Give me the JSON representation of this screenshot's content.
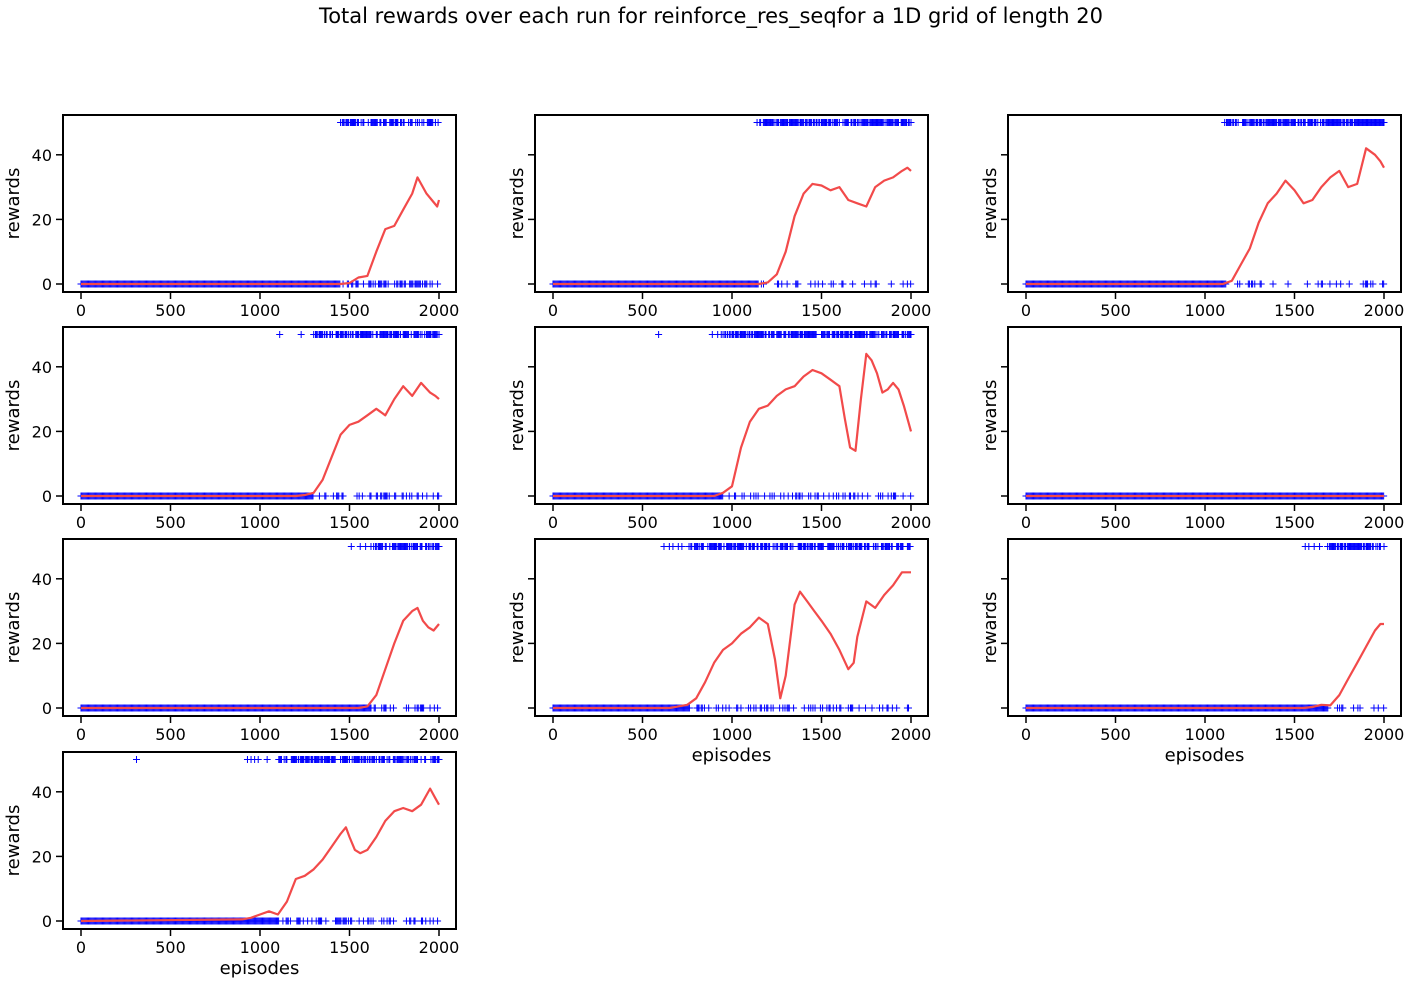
{
  "figure": {
    "title": "Total rewards over each run for reinforce_res_seqfor a 1D grid of length 20",
    "line_color": "#f24a4a",
    "marker_color": "#0000ff"
  },
  "chart_data": [
    {
      "type": "line",
      "ylabel": "rewards",
      "xlabel": "",
      "xlim": [
        0,
        2000
      ],
      "ylim": [
        0,
        50
      ],
      "xticks": [
        "0",
        "500",
        "1000",
        "1500",
        "2000"
      ],
      "yticks": [
        "0",
        "20",
        "40"
      ],
      "show_yticklabels": true,
      "line_points": [
        [
          0,
          0
        ],
        [
          1450,
          0
        ],
        [
          1500,
          0.3
        ],
        [
          1550,
          2
        ],
        [
          1600,
          2.5
        ],
        [
          1650,
          10
        ],
        [
          1700,
          17
        ],
        [
          1750,
          18
        ],
        [
          1800,
          23
        ],
        [
          1850,
          28
        ],
        [
          1880,
          33
        ],
        [
          1900,
          31
        ],
        [
          1930,
          28
        ],
        [
          1960,
          26
        ],
        [
          1990,
          24
        ],
        [
          2000,
          26
        ]
      ],
      "success_start": 1450,
      "success_density": 0.55,
      "success_isolated": [
        1480,
        1510,
        1520,
        1530
      ],
      "failure_end": 2000
    },
    {
      "type": "line",
      "ylabel": "rewards",
      "xlabel": "",
      "xlim": [
        0,
        2000
      ],
      "ylim": [
        0,
        50
      ],
      "xticks": [
        "0",
        "500",
        "1000",
        "1500",
        "2000"
      ],
      "yticks": [
        "0",
        "20",
        "40"
      ],
      "show_yticklabels": false,
      "line_points": [
        [
          0,
          0
        ],
        [
          1150,
          0
        ],
        [
          1200,
          0.5
        ],
        [
          1250,
          3
        ],
        [
          1300,
          10
        ],
        [
          1350,
          21
        ],
        [
          1400,
          28
        ],
        [
          1450,
          31
        ],
        [
          1500,
          30.5
        ],
        [
          1550,
          29
        ],
        [
          1600,
          30
        ],
        [
          1650,
          26
        ],
        [
          1700,
          25
        ],
        [
          1750,
          24
        ],
        [
          1800,
          30
        ],
        [
          1850,
          32
        ],
        [
          1900,
          33
        ],
        [
          1950,
          35
        ],
        [
          1980,
          36
        ],
        [
          2000,
          35
        ]
      ],
      "success_start": 1150,
      "success_density": 0.75,
      "success_isolated": [
        1140,
        1180,
        1200,
        1230
      ],
      "failure_end": 2000
    },
    {
      "type": "line",
      "ylabel": "rewards",
      "xlabel": "",
      "xlim": [
        0,
        2000
      ],
      "ylim": [
        0,
        50
      ],
      "xticks": [
        "0",
        "500",
        "1000",
        "1500",
        "2000"
      ],
      "yticks": [
        "0",
        "20",
        "40"
      ],
      "show_yticklabels": false,
      "line_points": [
        [
          0,
          0
        ],
        [
          1100,
          0
        ],
        [
          1150,
          1
        ],
        [
          1200,
          6
        ],
        [
          1250,
          11
        ],
        [
          1300,
          19
        ],
        [
          1350,
          25
        ],
        [
          1400,
          28
        ],
        [
          1450,
          32
        ],
        [
          1500,
          29
        ],
        [
          1550,
          25
        ],
        [
          1600,
          26
        ],
        [
          1650,
          30
        ],
        [
          1700,
          33
        ],
        [
          1750,
          35
        ],
        [
          1800,
          30
        ],
        [
          1850,
          31
        ],
        [
          1900,
          42
        ],
        [
          1950,
          40
        ],
        [
          1980,
          38
        ],
        [
          2000,
          36
        ]
      ],
      "success_start": 1120,
      "success_density": 0.8,
      "success_isolated": [
        1110
      ],
      "failure_end": 2000
    },
    {
      "type": "line",
      "ylabel": "rewards",
      "xlabel": "",
      "xlim": [
        0,
        2000
      ],
      "ylim": [
        0,
        50
      ],
      "xticks": [
        "0",
        "500",
        "1000",
        "1500",
        "2000"
      ],
      "yticks": [
        "0",
        "20",
        "40"
      ],
      "show_yticklabels": true,
      "line_points": [
        [
          0,
          0
        ],
        [
          1200,
          0
        ],
        [
          1250,
          0.3
        ],
        [
          1300,
          1
        ],
        [
          1350,
          5
        ],
        [
          1400,
          12
        ],
        [
          1450,
          19
        ],
        [
          1500,
          22
        ],
        [
          1550,
          23
        ],
        [
          1600,
          25
        ],
        [
          1650,
          27
        ],
        [
          1700,
          25
        ],
        [
          1750,
          30
        ],
        [
          1800,
          34
        ],
        [
          1850,
          31
        ],
        [
          1900,
          35
        ],
        [
          1950,
          32
        ],
        [
          1980,
          31
        ],
        [
          2000,
          30
        ]
      ],
      "success_start": 1300,
      "success_density": 0.7,
      "success_isolated": [
        1110,
        1230
      ],
      "failure_end": 2000
    },
    {
      "type": "line",
      "ylabel": "rewards",
      "xlabel": "",
      "xlim": [
        0,
        2000
      ],
      "ylim": [
        0,
        50
      ],
      "xticks": [
        "0",
        "500",
        "1000",
        "1500",
        "2000"
      ],
      "yticks": [
        "0",
        "20",
        "40"
      ],
      "show_yticklabels": false,
      "line_points": [
        [
          0,
          0
        ],
        [
          900,
          0
        ],
        [
          950,
          1
        ],
        [
          1000,
          3
        ],
        [
          1050,
          15
        ],
        [
          1100,
          23
        ],
        [
          1150,
          27
        ],
        [
          1200,
          28
        ],
        [
          1250,
          31
        ],
        [
          1300,
          33
        ],
        [
          1350,
          34
        ],
        [
          1400,
          37
        ],
        [
          1450,
          39
        ],
        [
          1500,
          38
        ],
        [
          1550,
          36
        ],
        [
          1600,
          34
        ],
        [
          1630,
          24
        ],
        [
          1660,
          15
        ],
        [
          1690,
          14
        ],
        [
          1720,
          30
        ],
        [
          1750,
          44
        ],
        [
          1780,
          42
        ],
        [
          1810,
          38
        ],
        [
          1840,
          32
        ],
        [
          1870,
          33
        ],
        [
          1900,
          35
        ],
        [
          1930,
          33
        ],
        [
          1960,
          28
        ],
        [
          1990,
          22
        ],
        [
          2000,
          20
        ]
      ],
      "success_start": 950,
      "success_density": 0.7,
      "success_isolated": [
        590,
        890,
        920,
        940
      ],
      "failure_end": 2000
    },
    {
      "type": "line",
      "ylabel": "rewards",
      "xlabel": "",
      "xlim": [
        0,
        2000
      ],
      "ylim": [
        0,
        50
      ],
      "xticks": [
        "0",
        "500",
        "1000",
        "1500",
        "2000"
      ],
      "yticks": [
        "0",
        "20",
        "40"
      ],
      "show_yticklabels": false,
      "line_points": [
        [
          0,
          0
        ],
        [
          2000,
          0
        ]
      ],
      "success_start": null,
      "success_density": 0,
      "success_isolated": [],
      "failure_end": 2000
    },
    {
      "type": "line",
      "ylabel": "rewards",
      "xlabel": "",
      "xlim": [
        0,
        2000
      ],
      "ylim": [
        0,
        50
      ],
      "xticks": [
        "0",
        "500",
        "1000",
        "1500",
        "2000"
      ],
      "yticks": [
        "0",
        "20",
        "40"
      ],
      "show_yticklabels": true,
      "line_points": [
        [
          0,
          0
        ],
        [
          1550,
          0
        ],
        [
          1600,
          0.5
        ],
        [
          1650,
          4
        ],
        [
          1700,
          12
        ],
        [
          1750,
          20
        ],
        [
          1800,
          27
        ],
        [
          1850,
          30
        ],
        [
          1880,
          31
        ],
        [
          1910,
          27
        ],
        [
          1940,
          25
        ],
        [
          1970,
          24
        ],
        [
          2000,
          26
        ]
      ],
      "success_start": 1620,
      "success_density": 0.7,
      "success_isolated": [
        1510,
        1560,
        1590
      ],
      "failure_end": 2000
    },
    {
      "type": "line",
      "ylabel": "rewards",
      "xlabel": "episodes",
      "xlim": [
        0,
        2000
      ],
      "ylim": [
        0,
        50
      ],
      "xticks": [
        "0",
        "500",
        "1000",
        "1500",
        "2000"
      ],
      "yticks": [
        "0",
        "20",
        "40"
      ],
      "show_yticklabels": false,
      "line_points": [
        [
          0,
          0
        ],
        [
          650,
          0
        ],
        [
          700,
          0.5
        ],
        [
          750,
          1
        ],
        [
          800,
          3
        ],
        [
          850,
          8
        ],
        [
          900,
          14
        ],
        [
          950,
          18
        ],
        [
          1000,
          20
        ],
        [
          1050,
          23
        ],
        [
          1100,
          25
        ],
        [
          1150,
          28
        ],
        [
          1200,
          26
        ],
        [
          1240,
          15
        ],
        [
          1270,
          3
        ],
        [
          1300,
          10
        ],
        [
          1350,
          32
        ],
        [
          1380,
          36
        ],
        [
          1420,
          33
        ],
        [
          1460,
          30
        ],
        [
          1500,
          27
        ],
        [
          1550,
          23
        ],
        [
          1600,
          18
        ],
        [
          1650,
          12
        ],
        [
          1680,
          14
        ],
        [
          1700,
          22
        ],
        [
          1750,
          33
        ],
        [
          1800,
          31
        ],
        [
          1850,
          35
        ],
        [
          1900,
          38
        ],
        [
          1950,
          42
        ],
        [
          2000,
          42
        ]
      ],
      "success_start": 760,
      "success_density": 0.65,
      "success_isolated": [
        620,
        650,
        670,
        700,
        720
      ],
      "failure_end": 2000
    },
    {
      "type": "line",
      "ylabel": "rewards",
      "xlabel": "episodes",
      "xlim": [
        0,
        2000
      ],
      "ylim": [
        0,
        50
      ],
      "xticks": [
        "0",
        "500",
        "1000",
        "1500",
        "2000"
      ],
      "yticks": [
        "0",
        "20",
        "40"
      ],
      "show_yticklabels": false,
      "line_points": [
        [
          0,
          0
        ],
        [
          1550,
          0
        ],
        [
          1600,
          0.3
        ],
        [
          1650,
          1
        ],
        [
          1700,
          0.8
        ],
        [
          1750,
          4
        ],
        [
          1800,
          9
        ],
        [
          1850,
          14
        ],
        [
          1900,
          19
        ],
        [
          1950,
          24
        ],
        [
          1980,
          26
        ],
        [
          2000,
          26
        ]
      ],
      "success_start": 1680,
      "success_density": 0.75,
      "success_isolated": [
        1560,
        1580,
        1610,
        1640
      ],
      "failure_end": 2000
    },
    {
      "type": "line",
      "ylabel": "rewards",
      "xlabel": "episodes",
      "xlim": [
        0,
        2000
      ],
      "ylim": [
        0,
        50
      ],
      "xticks": [
        "0",
        "500",
        "1000",
        "1500",
        "2000"
      ],
      "yticks": [
        "0",
        "20",
        "40"
      ],
      "show_yticklabels": true,
      "line_points": [
        [
          0,
          0
        ],
        [
          900,
          0.5
        ],
        [
          950,
          1
        ],
        [
          1000,
          2
        ],
        [
          1050,
          3
        ],
        [
          1100,
          2
        ],
        [
          1150,
          6
        ],
        [
          1200,
          13
        ],
        [
          1250,
          14
        ],
        [
          1300,
          16
        ],
        [
          1350,
          19
        ],
        [
          1400,
          23
        ],
        [
          1450,
          27
        ],
        [
          1480,
          29
        ],
        [
          1500,
          26
        ],
        [
          1530,
          22
        ],
        [
          1560,
          21
        ],
        [
          1600,
          22
        ],
        [
          1650,
          26
        ],
        [
          1700,
          31
        ],
        [
          1750,
          34
        ],
        [
          1800,
          35
        ],
        [
          1850,
          34
        ],
        [
          1900,
          36
        ],
        [
          1950,
          41
        ],
        [
          1980,
          38
        ],
        [
          2000,
          36
        ]
      ],
      "success_start": 1100,
      "success_density": 0.65,
      "success_isolated": [
        310,
        930,
        950,
        970,
        990,
        1040
      ],
      "failure_end": 2000
    }
  ]
}
